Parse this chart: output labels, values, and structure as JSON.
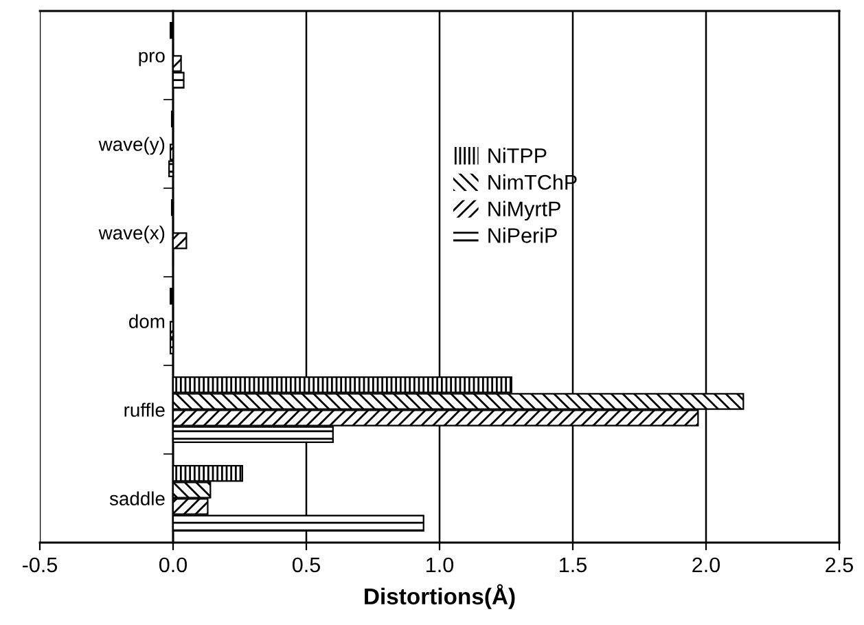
{
  "chart_data": {
    "type": "bar",
    "orientation": "horizontal",
    "xlabel": "Distortions(Å)",
    "categories": [
      "pro",
      "wave(y)",
      "wave(x)",
      "dom",
      "ruffle",
      "saddle"
    ],
    "series": [
      {
        "name": "NiTPP",
        "color": "#000000",
        "values": [
          -0.01,
          -0.005,
          -0.005,
          -0.01,
          1.27,
          0.26
        ]
      },
      {
        "name": "NimTChP",
        "color": "#000000",
        "values": [
          0,
          0,
          0,
          0,
          2.14,
          0.14
        ]
      },
      {
        "name": "NiMyrtP",
        "color": "#000000",
        "values": [
          0.03,
          -0.01,
          0.05,
          -0.01,
          1.97,
          0.13
        ]
      },
      {
        "name": "NiPeriP",
        "color": "#000000",
        "values": [
          0.04,
          -0.015,
          0,
          -0.01,
          0.6,
          0.94
        ]
      }
    ],
    "xlim": [
      -0.5,
      2.5
    ],
    "xticks": [
      -0.5,
      {
        "value": 0,
        "label": "0.0"
      },
      0.5,
      {
        "value": 1,
        "label": "1.0"
      },
      1.5,
      {
        "value": 2,
        "label": "2.0"
      },
      2.5
    ],
    "grid": "x",
    "legend": "center"
  }
}
